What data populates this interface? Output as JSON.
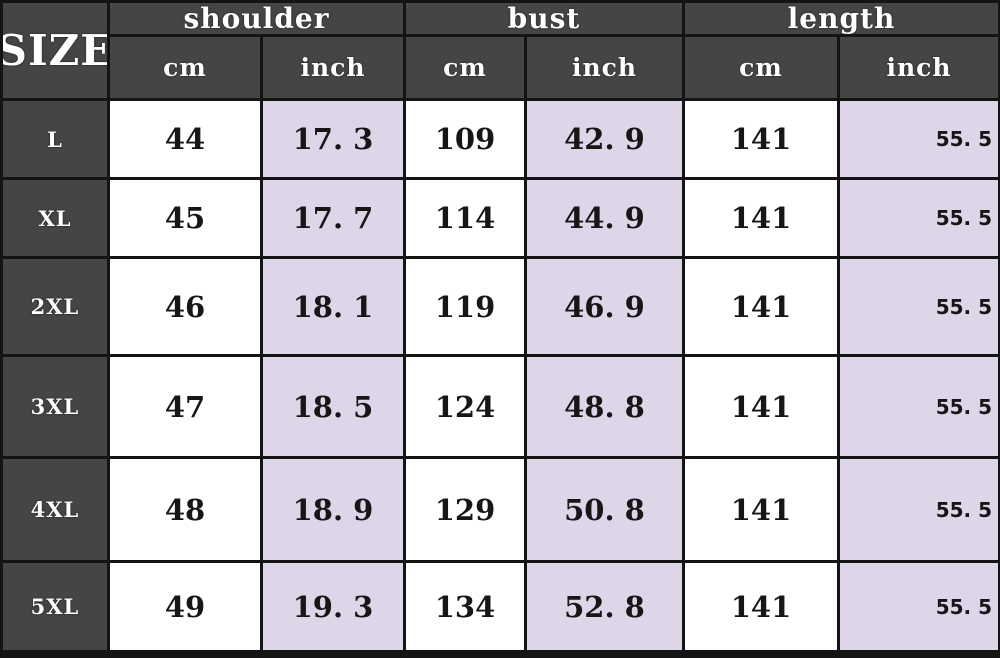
{
  "colors": {
    "header_bg": "#454545",
    "highlight_bg": "#ded5e8",
    "cm_bg": "#ffffff",
    "border": "#141414",
    "text_light": "#ffffff",
    "text_dark": "#161616"
  },
  "table": {
    "corner_label": "SIZE",
    "groups": [
      {
        "label": "shoulder"
      },
      {
        "label": "bust"
      },
      {
        "label": "length"
      }
    ],
    "unit_headers": [
      "cm",
      "inch",
      "cm",
      "inch",
      "cm",
      "inch"
    ],
    "rows": [
      {
        "size": "L",
        "values": [
          "44",
          "17. 3",
          "109",
          "42. 9",
          "141",
          "55. 5"
        ]
      },
      {
        "size": "XL",
        "values": [
          "45",
          "17. 7",
          "114",
          "44. 9",
          "141",
          "55. 5"
        ]
      },
      {
        "size": "2XL",
        "values": [
          "46",
          "18. 1",
          "119",
          "46. 9",
          "141",
          "55. 5"
        ]
      },
      {
        "size": "3XL",
        "values": [
          "47",
          "18. 5",
          "124",
          "48. 8",
          "141",
          "55. 5"
        ]
      },
      {
        "size": "4XL",
        "values": [
          "48",
          "18. 9",
          "129",
          "50. 8",
          "141",
          "55. 5"
        ]
      },
      {
        "size": "5XL",
        "values": [
          "49",
          "19. 3",
          "134",
          "52. 8",
          "141",
          "55. 5"
        ]
      }
    ]
  },
  "chart_data": {
    "type": "table",
    "row_header": "SIZE",
    "column_groups": [
      "shoulder",
      "bust",
      "length"
    ],
    "columns": [
      "shoulder cm",
      "shoulder inch",
      "bust cm",
      "bust inch",
      "length cm",
      "length inch"
    ],
    "sizes": [
      "L",
      "XL",
      "2XL",
      "3XL",
      "4XL",
      "5XL"
    ],
    "values": [
      [
        44,
        17.3,
        109,
        42.9,
        141,
        55.5
      ],
      [
        45,
        17.7,
        114,
        44.9,
        141,
        55.5
      ],
      [
        46,
        18.1,
        119,
        46.9,
        141,
        55.5
      ],
      [
        47,
        18.5,
        124,
        48.8,
        141,
        55.5
      ],
      [
        48,
        18.9,
        129,
        50.8,
        141,
        55.5
      ],
      [
        49,
        19.3,
        134,
        52.8,
        141,
        55.5
      ]
    ]
  }
}
